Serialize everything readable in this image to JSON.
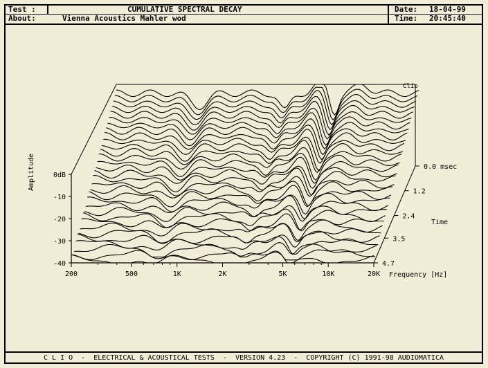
{
  "header": {
    "test_label": "Test :",
    "title": "CUMULATIVE SPECTRAL DECAY",
    "about_label": "About:",
    "about_value": "Vienna Acoustics Mahler wod",
    "date_label": "Date:",
    "date_value": "18-04-99",
    "time_label": "Time:",
    "time_value": "20:45:40"
  },
  "footer": {
    "text": "C L I O  -  ELECTRICAL & ACOUSTICAL TESTS  -  VERSION 4.23  -  COPYRIGHT (C) 1991-98 AUDIOMATICA"
  },
  "chart_data": {
    "type": "waterfall",
    "title": "CUMULATIVE SPECTRAL DECAY",
    "ylabel": "Amplitude",
    "xlabel": "Frequency [Hz]",
    "zlabel": "Time",
    "watermark": "Clio",
    "y_ticks": [
      "0dB",
      "-10",
      "-20",
      "-30",
      "-40"
    ],
    "x_ticks": [
      "200",
      "500",
      "1K",
      "2K",
      "5K",
      "10K",
      "20K"
    ],
    "z_ticks": [
      "0.0 msec",
      "1.2",
      "2.4",
      "3.5",
      "4.7"
    ],
    "x_range_hz": [
      200,
      20000
    ],
    "y_range_db": [
      -40,
      0
    ],
    "time_range_ms": [
      0.0,
      4.7
    ],
    "slice_count": 32,
    "colors": {
      "background": "#f1edd6",
      "line": "#000000"
    }
  }
}
